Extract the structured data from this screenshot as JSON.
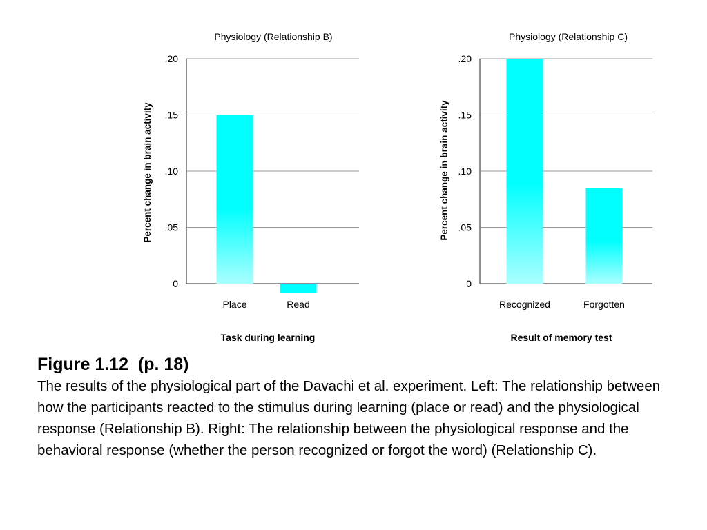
{
  "chart_data": [
    {
      "type": "bar",
      "title": "Physiology (Relationship B)",
      "xlabel": "Task during learning",
      "ylabel": "Percent change in brain activity",
      "categories": [
        "Place",
        "Read"
      ],
      "values": [
        0.15,
        -0.008
      ],
      "ylim": [
        0,
        0.2
      ],
      "yticks": [
        0,
        0.05,
        0.1,
        0.15,
        0.2
      ],
      "ytick_labels": [
        "0",
        ".05",
        ".10",
        ".15",
        ".20"
      ],
      "grid": true,
      "bar_color": "#00ffff",
      "bar_color_light": "#aaffff"
    },
    {
      "type": "bar",
      "title": "Physiology (Relationship C)",
      "xlabel": "Result of memory test",
      "ylabel": "Percent change in brain activity",
      "categories": [
        "Recognized",
        "Forgotten"
      ],
      "values": [
        0.2,
        0.085
      ],
      "ylim": [
        0,
        0.2
      ],
      "yticks": [
        0,
        0.05,
        0.1,
        0.15,
        0.2
      ],
      "ytick_labels": [
        "0",
        ".05",
        ".10",
        ".15",
        ".20"
      ],
      "grid": true,
      "bar_color": "#00ffff",
      "bar_color_light": "#aaffff"
    }
  ],
  "caption": {
    "title": "Figure 1.12  (p. 18)",
    "text": "The results of the physiological part of the Davachi et al. experiment. Left: The relationship between how the participants reacted to the stimulus during learning (place or read) and the physiological response (Relationship B). Right: The relationship between the physiological response and the behavioral response (whether the person recognized or forgot the word) (Relationship C)."
  }
}
